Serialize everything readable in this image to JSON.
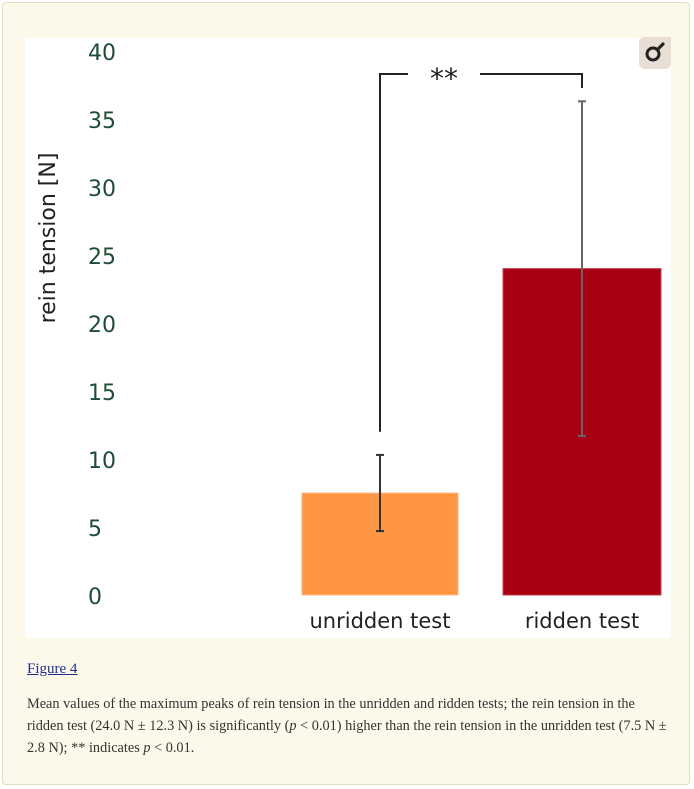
{
  "chart_data": {
    "type": "bar",
    "ylabel": "rein tension [N]",
    "xlabel": "",
    "ylim": [
      0,
      40
    ],
    "yticks": [
      0,
      5,
      10,
      15,
      20,
      25,
      30,
      35,
      40
    ],
    "categories": [
      "unridden test",
      "ridden test"
    ],
    "values": [
      7.5,
      24.0
    ],
    "errors": [
      2.8,
      12.3
    ],
    "colors": [
      "#ff9643",
      "#a80012"
    ],
    "significance_label": "**",
    "grid": false,
    "legend": "none"
  },
  "figure": {
    "link_label": "Figure 4",
    "caption_parts": [
      "Mean values of the maximum peaks of rein tension in the unridden and ridden tests; the rein tension in the ridden test (24.0 N ± 12.3 N) is significantly (",
      "p",
      " < 0.01) higher than the rein tension in the unridden test (7.5 N ± 2.8 N); ** indicates ",
      "p",
      " < 0.01."
    ]
  },
  "toolbar": {
    "zoom_icon": "zoom-icon"
  }
}
